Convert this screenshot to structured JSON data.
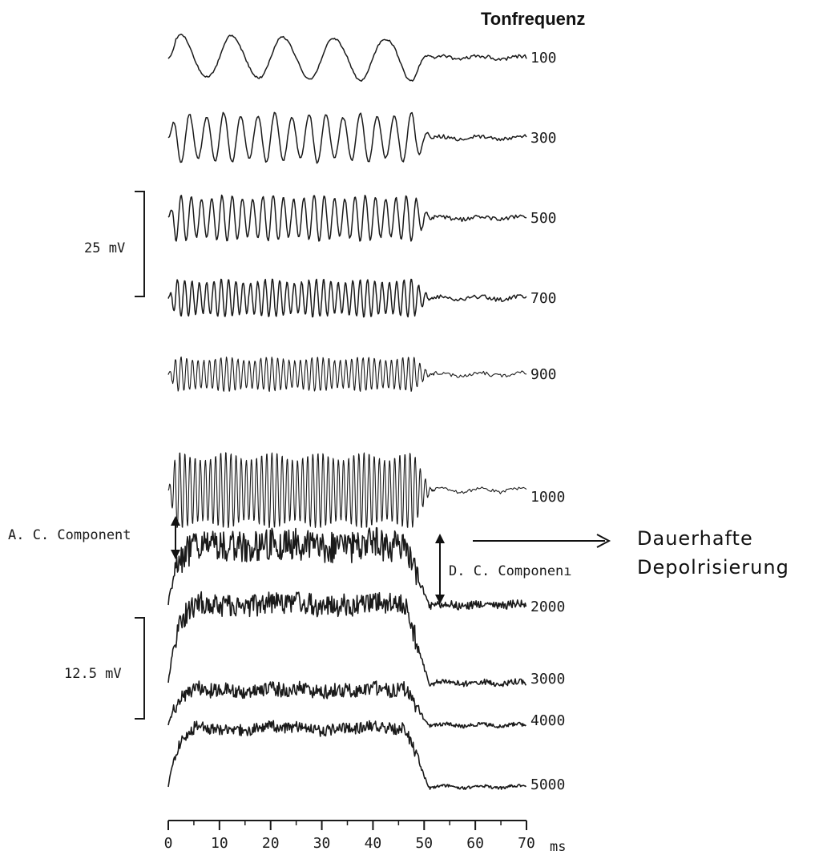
{
  "chart_data": {
    "type": "line",
    "title": "Tonfrequenz",
    "x_axis": {
      "ticks": [
        0,
        10,
        20,
        30,
        40,
        50,
        60,
        70
      ],
      "tick_labels": [
        "0",
        "10",
        "20",
        "30",
        "40",
        "50",
        "60",
        "70"
      ],
      "unit": "ms",
      "range": [
        0,
        70
      ]
    },
    "stimulus_window_ms": [
      0,
      50
    ],
    "series": [
      {
        "name": "100",
        "frequency_hz": 100,
        "style": "ac",
        "amplitude_mv": 5.5
      },
      {
        "name": "300",
        "frequency_hz": 300,
        "style": "ac",
        "amplitude_mv": 6.0
      },
      {
        "name": "500",
        "frequency_hz": 500,
        "style": "ac",
        "amplitude_mv": 5.5
      },
      {
        "name": "700",
        "frequency_hz": 700,
        "style": "ac",
        "amplitude_mv": 4.5
      },
      {
        "name": "900",
        "frequency_hz": 900,
        "style": "ac",
        "amplitude_mv": 4.0
      },
      {
        "name": "1000",
        "frequency_hz": 1000,
        "style": "ac",
        "amplitude_mv": 9.0
      },
      {
        "name": "2000",
        "frequency_hz": 2000,
        "style": "dc",
        "dc_mv": 7.5,
        "ripple_mv": 2.0
      },
      {
        "name": "3000",
        "frequency_hz": 3000,
        "style": "dc",
        "dc_mv": 10.0,
        "ripple_mv": 1.4
      },
      {
        "name": "4000",
        "frequency_hz": 4000,
        "style": "dc",
        "dc_mv": 4.5,
        "ripple_mv": 0.9
      },
      {
        "name": "5000",
        "frequency_hz": 5000,
        "style": "dc",
        "dc_mv": 7.5,
        "ripple_mv": 0.7
      }
    ],
    "scale_bars": [
      {
        "label": "25 mV",
        "applies_to": [
          "100",
          "300",
          "500",
          "700",
          "900",
          "1000"
        ]
      },
      {
        "label": "12.5 mV",
        "applies_to": [
          "2000",
          "3000",
          "4000",
          "5000"
        ]
      }
    ],
    "annotations": {
      "ac_component": "A. C.  Component",
      "dc_component": "D. C.  Componenı",
      "handwritten_note_line1": "Dauerhafte",
      "handwritten_note_line2": "Depolrisierung"
    },
    "grid": false,
    "legend": "none"
  },
  "colors": {
    "trace": "#1a1a1a",
    "background": "#ffffff"
  }
}
